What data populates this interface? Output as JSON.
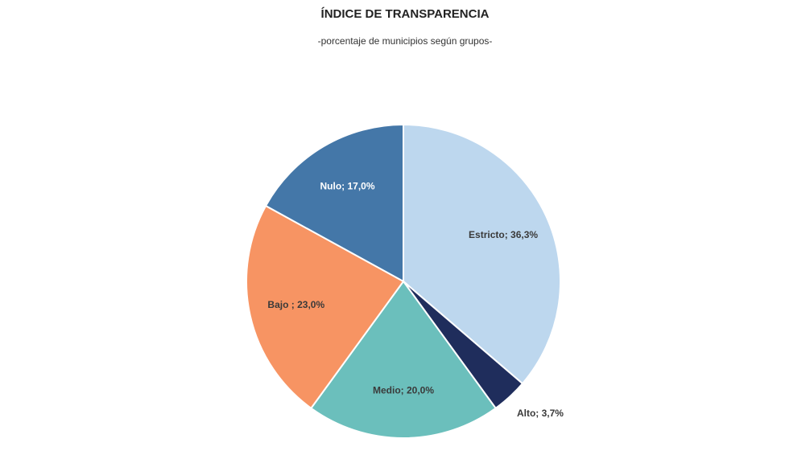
{
  "chart_data": {
    "type": "pie",
    "title": "ÍNDICE DE TRANSPARENCIA",
    "subtitle": "-porcentaje de municipios según grupos-",
    "values": [
      36.3,
      3.7,
      20.0,
      23.0,
      17.0
    ],
    "value_labels": [
      "Estricto; 36,3%",
      "Alto; 3,7%",
      "Medio; 20,0%",
      "Bajo ; 23,0%",
      "Nulo; 17,0%"
    ],
    "colors": [
      "#bdd7ee",
      "#1f2d5c",
      "#6bbfbc",
      "#f79463",
      "#4477a8"
    ],
    "label_colors": [
      "#3a3a3a",
      "#3a3a3a",
      "#3a3a3a",
      "#3a3a3a",
      "#ffffff"
    ]
  }
}
